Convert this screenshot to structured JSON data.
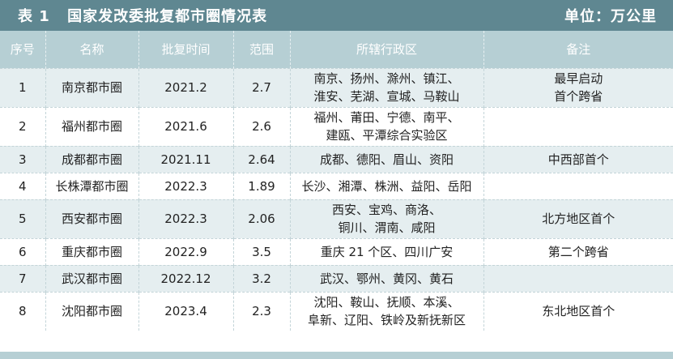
{
  "header": {
    "table_label": "表 1",
    "title": "国家发改委批复都市圈情况表",
    "unit": "单位：万公里"
  },
  "columns": [
    "序号",
    "名称",
    "批复时间",
    "范围",
    "所辖行政区",
    "备注"
  ],
  "rows": [
    {
      "no": "1",
      "name": "南京都市圈",
      "date": "2021.2",
      "range": "2.7",
      "areas": [
        "南京、扬州、滁州、镇江、",
        "淮安、芜湖、宣城、马鞍山"
      ],
      "remark": [
        "最早启动",
        "首个跨省"
      ]
    },
    {
      "no": "2",
      "name": "福州都市圈",
      "date": "2021.6",
      "range": "2.6",
      "areas": [
        "福州、莆田、宁德、南平、",
        "建瓯、平潭综合实验区"
      ],
      "remark": [
        "",
        ""
      ]
    },
    {
      "no": "3",
      "name": "成都都市圈",
      "date": "2021.11",
      "range": "2.64",
      "areas": [
        "成都、德阳、眉山、资阳",
        ""
      ],
      "remark": [
        "中西部首个",
        ""
      ]
    },
    {
      "no": "4",
      "name": "长株潭都市圈",
      "date": "2022.3",
      "range": "1.89",
      "areas": [
        "长沙、湘潭、株洲、益阳、岳阳",
        ""
      ],
      "remark": [
        "",
        ""
      ]
    },
    {
      "no": "5",
      "name": "西安都市圈",
      "date": "2022.3",
      "range": "2.06",
      "areas": [
        "西安、宝鸡、商洛、",
        "铜川、渭南、咸阳"
      ],
      "remark": [
        "北方地区首个",
        ""
      ]
    },
    {
      "no": "6",
      "name": "重庆都市圈",
      "date": "2022.9",
      "range": "3.5",
      "areas": [
        "重庆 21 个区、四川广安",
        ""
      ],
      "remark": [
        "第二个跨省",
        ""
      ]
    },
    {
      "no": "7",
      "name": "武汉都市圈",
      "date": "2022.12",
      "range": "3.2",
      "areas": [
        "武汉、鄂州、黄冈、黄石",
        ""
      ],
      "remark": [
        "",
        ""
      ]
    },
    {
      "no": "8",
      "name": "沈阳都市圈",
      "date": "2023.4",
      "range": "2.3",
      "areas": [
        "沈阳、鞍山、抚顺、本溪、",
        "阜新、辽阳、铁岭及新抚新区"
      ],
      "remark": [
        "东北地区首个",
        ""
      ]
    }
  ]
}
